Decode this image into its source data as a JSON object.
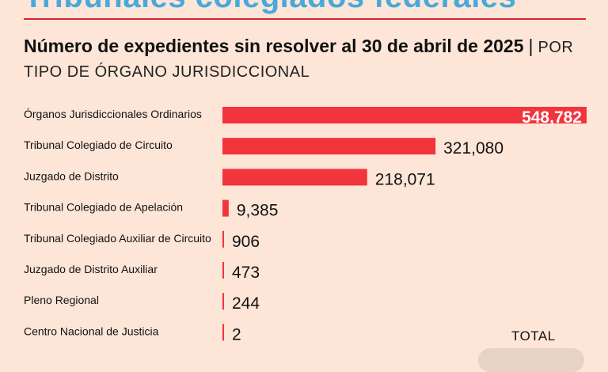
{
  "header": {
    "band_title": "Tribunales colegiados federales",
    "title": "Número de expedientes sin resolver al 30 de abril de 2025",
    "separator": "|",
    "subtitle": "POR TIPO DE ÓRGANO JURISDICCIONAL"
  },
  "total_label": "TOTAL",
  "colors": {
    "bar": "#f2343c",
    "accent": "#e0202a",
    "band_title": "#4aa8db",
    "background": "#fde6d8"
  },
  "chart_data": {
    "type": "bar",
    "orientation": "horizontal",
    "title": "Número de expedientes sin resolver al 30 de abril de 2025",
    "subtitle": "POR TIPO DE ÓRGANO JURISDICCIONAL",
    "categories": [
      "Órganos Jurisdiccionales Ordinarios",
      "Tribunal Colegiado de Circuito",
      "Juzgado de Distrito",
      "Tribunal Colegiado de Apelación",
      "Tribunal Colegiado Auxiliar de Circuito",
      "Juzgado de Distrito Auxiliar",
      "Pleno Regional",
      "Centro Nacional de Justicia"
    ],
    "values": [
      548782,
      321080,
      218071,
      9385,
      906,
      473,
      244,
      2
    ],
    "value_labels": [
      "548,782",
      "321,080",
      "218,071",
      "9,385",
      "906",
      "473",
      "244",
      "2"
    ],
    "xlim": [
      0,
      548782
    ],
    "grid": false,
    "legend": "none"
  }
}
